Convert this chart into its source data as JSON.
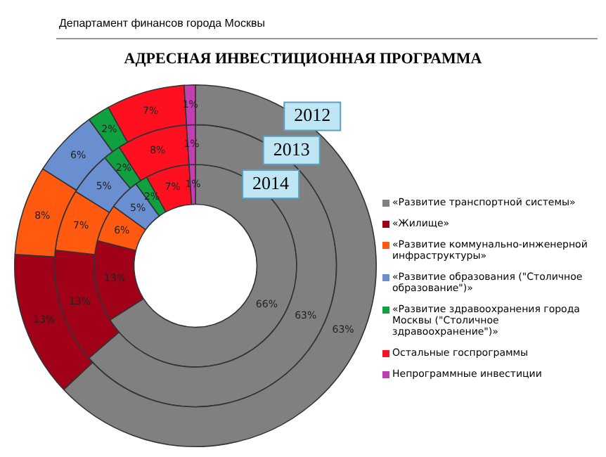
{
  "chart_data": {
    "type": "donut",
    "title": "АДРЕСНАЯ ИНВЕСТИЦИОННАЯ ПРОГРАММА",
    "annotations": [
      "Департамент финансов города Москвы"
    ],
    "categories": [
      "«Развитие транспортной системы»",
      "«Жилище»",
      "«Развитие коммунально-инженерной инфраструктуры»",
      "«Развитие образования (\"Столичное образование\")»",
      "«Развитие здравоохранения города Москвы (\"Столичное здравоохранение\")»",
      "Остальные госпрограммы",
      "Непрограммные инвестиции"
    ],
    "colors": [
      "#808080",
      "#a00018",
      "#ff5a10",
      "#6a8fd0",
      "#10a040",
      "#ff1020",
      "#c040b0"
    ],
    "series": [
      {
        "name": "2012",
        "values": [
          63,
          13,
          8,
          6,
          2,
          7,
          1
        ],
        "value_labels": [
          "63%",
          "13%",
          "8%",
          "6%",
          "2%",
          "7%",
          "1%"
        ]
      },
      {
        "name": "2013",
        "values": [
          63,
          13,
          7,
          5,
          2,
          8,
          1
        ],
        "value_labels": [
          "63%",
          "13%",
          "7%",
          "5%",
          "2%",
          "8%",
          "1%"
        ]
      },
      {
        "name": "2014",
        "values": [
          66,
          13,
          6,
          5,
          2,
          7,
          1
        ],
        "value_labels": [
          "66%",
          "13%",
          "6%",
          "5%",
          "2%",
          "7%",
          "1%"
        ]
      }
    ],
    "legend": "right"
  }
}
